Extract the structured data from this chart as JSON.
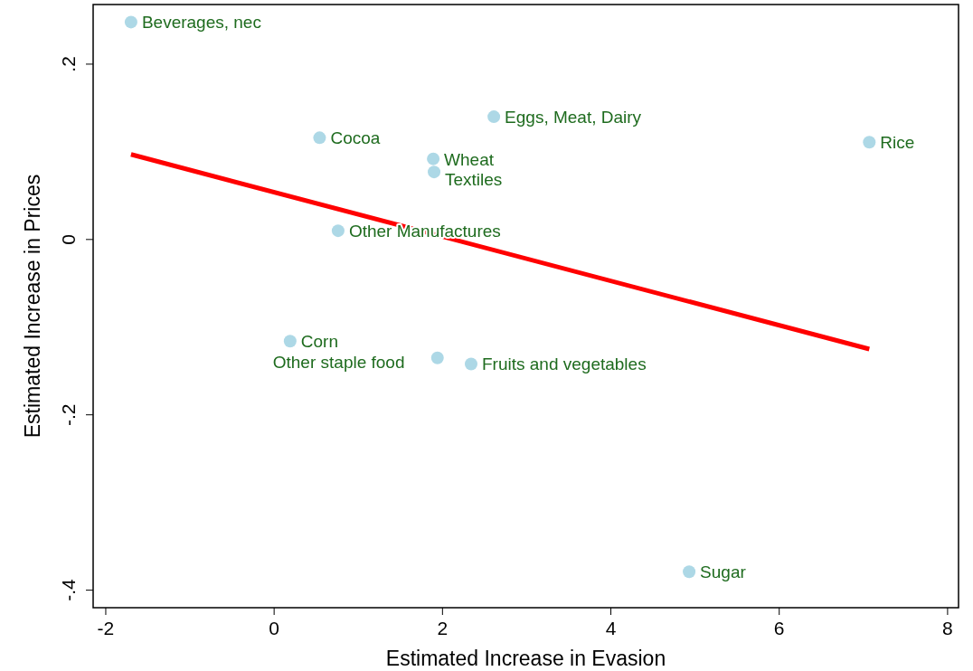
{
  "chart_data": {
    "type": "scatter",
    "xlabel": "Estimated Increase in Evasion",
    "ylabel": "Estimated Increase in Prices",
    "xlim": [
      -2.15,
      8.13
    ],
    "ylim": [
      -0.42,
      0.268
    ],
    "xticks": [
      -2,
      0,
      2,
      4,
      6,
      8
    ],
    "yticks": [
      {
        "value": -0.4,
        "label": "-.4"
      },
      {
        "value": -0.2,
        "label": "-.2"
      },
      0,
      {
        "value": 0.2,
        "label": ".2"
      }
    ],
    "grid": false,
    "marker": "circle",
    "series": [
      {
        "color": "#add8e6",
        "x": [
          -1.7,
          2.61,
          0.54,
          7.07,
          1.89,
          1.9,
          0.76,
          0.19,
          1.94,
          2.34,
          4.93
        ],
        "values": [
          0.248,
          0.14,
          0.116,
          0.111,
          0.092,
          0.077,
          0.01,
          -0.116,
          -0.135,
          -0.142,
          -0.379
        ]
      },
      {
        "type": "line",
        "color": "#ff0000",
        "marker": "none",
        "line_style": "solid",
        "x": [
          -1.7,
          7.07
        ],
        "values": [
          0.097,
          -0.125
        ]
      }
    ],
    "annotations": [
      {
        "text": "Beverages, nec",
        "x": -1.7,
        "y": 0.248
      },
      {
        "text": "Eggs, Meat, Dairy",
        "x": 2.61,
        "y": 0.14
      },
      {
        "text": "Cocoa",
        "x": 0.54,
        "y": 0.116
      },
      {
        "text": "Rice",
        "x": 7.07,
        "y": 0.111
      },
      {
        "text": "Wheat",
        "x": 1.89,
        "y": 0.092
      },
      {
        "text": "Textiles",
        "x": 1.9,
        "y": 0.077
      },
      {
        "text": "Other Manufactures",
        "x": 0.76,
        "y": 0.01
      },
      {
        "text": "Corn",
        "x": 0.19,
        "y": -0.116
      },
      {
        "text": "Other staple food",
        "x": 1.94,
        "y": -0.135
      },
      {
        "text": "Fruits and vegetables",
        "x": 2.34,
        "y": -0.142
      },
      {
        "text": "Sugar",
        "x": 4.93,
        "y": -0.379
      }
    ]
  }
}
